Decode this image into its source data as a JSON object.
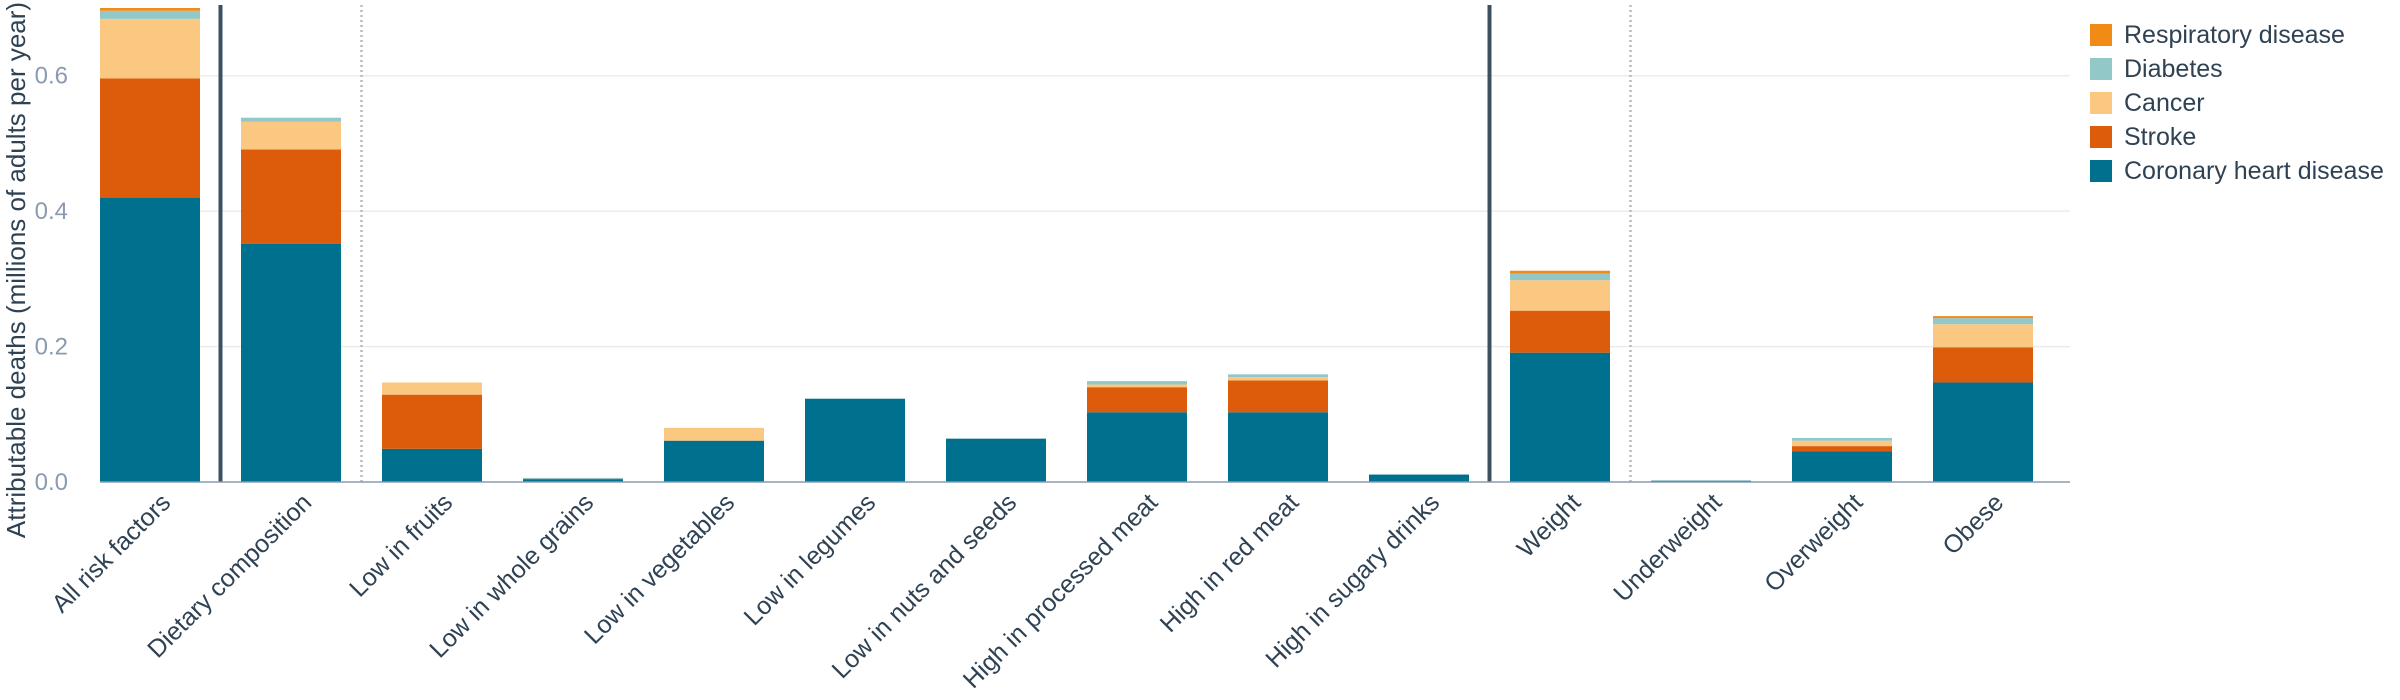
{
  "chart_data": {
    "type": "bar",
    "stacked": true,
    "ylabel": "Attributable deaths (millions of adults per year)",
    "xlabel": "",
    "ylim": [
      0,
      0.7
    ],
    "yticks": [
      "0.0",
      "0.2",
      "0.4",
      "0.6"
    ],
    "ytick_values": [
      0,
      0.2,
      0.4,
      0.6
    ],
    "grid": true,
    "legend_position": "top-right",
    "categories": [
      "All risk factors",
      "Dietary composition",
      "Low in fruits",
      "Low in whole grains",
      "Low in vegetables",
      "Low in legumes",
      "Low in nuts and seeds",
      "High in processed meat",
      "High in red meat",
      "High in sugary drinks",
      "Weight",
      "Underweight",
      "Overweight",
      "Obese"
    ],
    "series": [
      {
        "name": "Coronary heart disease",
        "color": "#00708f",
        "values": [
          0.42,
          0.352,
          0.049,
          0.004,
          0.061,
          0.123,
          0.064,
          0.103,
          0.103,
          0.011,
          0.191,
          0.002,
          0.045,
          0.147
        ]
      },
      {
        "name": "Stroke",
        "color": "#dd5c0b",
        "values": [
          0.176,
          0.139,
          0.08,
          0.001,
          0.0,
          0.0,
          0.0,
          0.037,
          0.047,
          0.0,
          0.062,
          0.0,
          0.008,
          0.052
        ]
      },
      {
        "name": "Cancer",
        "color": "#fbc881",
        "values": [
          0.088,
          0.041,
          0.018,
          0.0,
          0.019,
          0.0,
          0.0,
          0.004,
          0.005,
          0.0,
          0.045,
          0.0,
          0.008,
          0.034
        ]
      },
      {
        "name": "Diabetes",
        "color": "#92c8c8",
        "values": [
          0.012,
          0.006,
          0.0,
          0.001,
          0.0,
          0.0,
          0.0,
          0.005,
          0.004,
          0.0,
          0.01,
          0.0,
          0.004,
          0.009
        ]
      },
      {
        "name": "Respiratory disease",
        "color": "#f28b16",
        "values": [
          0.004,
          0.0,
          0.0,
          0.0,
          0.0,
          0.0,
          0.0,
          0.0,
          0.0,
          0.0,
          0.004,
          0.0,
          0.0,
          0.003
        ]
      }
    ],
    "legend_order": [
      "Respiratory disease",
      "Diabetes",
      "Cancer",
      "Stroke",
      "Coronary heart disease"
    ],
    "separators": [
      {
        "after_index": 0,
        "style": "solid"
      },
      {
        "after_index": 1,
        "style": "dotted"
      },
      {
        "after_index": 9,
        "style": "solid"
      },
      {
        "after_index": 10,
        "style": "dotted"
      }
    ]
  }
}
